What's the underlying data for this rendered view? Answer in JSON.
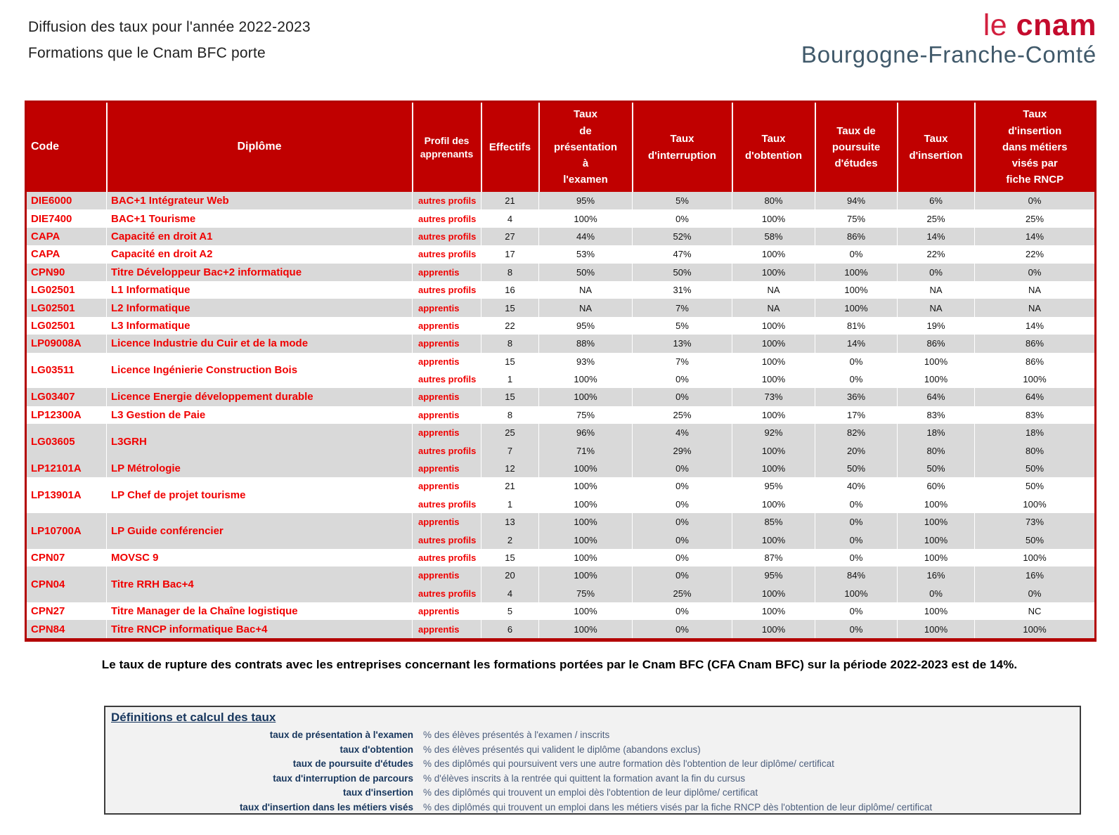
{
  "page": {
    "title_line1": "Diffusion des taux pour l'année 2022-2023",
    "title_line2": "Formations que le Cnam BFC porte"
  },
  "logo": {
    "le": "le ",
    "cnam": "cnam",
    "region": "Bourgogne-Franche-Comté"
  },
  "colors": {
    "header_red": "#c00000",
    "accent_red": "#f00000",
    "outer_border_red": "#b30000",
    "band_gray": "#d9d9d9",
    "navy": "#17365d",
    "logo_red": "#c40b2d",
    "logo_slate": "#40596a"
  },
  "table": {
    "columns": [
      "Code",
      "Diplôme",
      "Profil des\napprenants",
      "Effectifs",
      "Taux\nde\nprésentation\nà\nl'examen",
      "Taux\nd'interruption",
      "Taux\nd'obtention",
      "Taux de\npoursuite\nd'études",
      "Taux\nd'insertion",
      "Taux\nd'insertion\ndans métiers\nvisés par\nfiche RNCP"
    ],
    "groups": [
      {
        "code": "DIE6000",
        "diplome": "BAC+1 Intégrateur Web",
        "shade": "gray",
        "rows": [
          {
            "profil": "autres profils",
            "effectifs": "21",
            "values": [
              "95%",
              "5%",
              "80%",
              "94%",
              "6%",
              "0%"
            ]
          }
        ]
      },
      {
        "code": "DIE7400",
        "diplome": "BAC+1 Tourisme",
        "shade": "white",
        "rows": [
          {
            "profil": "autres profils",
            "effectifs": "4",
            "values": [
              "100%",
              "0%",
              "100%",
              "75%",
              "25%",
              "25%"
            ]
          }
        ]
      },
      {
        "code": "CAPA",
        "diplome": "Capacité en droit A1",
        "shade": "gray",
        "rows": [
          {
            "profil": "autres profils",
            "effectifs": "27",
            "values": [
              "44%",
              "52%",
              "58%",
              "86%",
              "14%",
              "14%"
            ]
          }
        ]
      },
      {
        "code": "CAPA",
        "diplome": "Capacité en droit A2",
        "shade": "white",
        "rows": [
          {
            "profil": "autres profils",
            "effectifs": "17",
            "values": [
              "53%",
              "47%",
              "100%",
              "0%",
              "22%",
              "22%"
            ]
          }
        ]
      },
      {
        "code": "CPN90",
        "diplome": "Titre Développeur Bac+2 informatique",
        "shade": "gray",
        "rows": [
          {
            "profil": "apprentis",
            "effectifs": "8",
            "values": [
              "50%",
              "50%",
              "100%",
              "100%",
              "0%",
              "0%"
            ]
          }
        ]
      },
      {
        "code": "LG02501",
        "diplome": "L1 Informatique",
        "shade": "white",
        "rows": [
          {
            "profil": "autres profils",
            "effectifs": "16",
            "values": [
              "NA",
              "31%",
              "NA",
              "100%",
              "NA",
              "NA"
            ]
          }
        ]
      },
      {
        "code": "LG02501",
        "diplome": "L2 Informatique",
        "shade": "gray",
        "rows": [
          {
            "profil": "apprentis",
            "effectifs": "15",
            "values": [
              "NA",
              "7%",
              "NA",
              "100%",
              "NA",
              "NA"
            ]
          }
        ]
      },
      {
        "code": "LG02501",
        "diplome": "L3 Informatique",
        "shade": "white",
        "rows": [
          {
            "profil": "apprentis",
            "effectifs": "22",
            "values": [
              "95%",
              "5%",
              "100%",
              "81%",
              "19%",
              "14%"
            ]
          }
        ]
      },
      {
        "code": "LP09008A",
        "diplome": "Licence Industrie du Cuir et de la mode",
        "shade": "gray",
        "rows": [
          {
            "profil": "apprentis",
            "effectifs": "8",
            "values": [
              "88%",
              "13%",
              "100%",
              "14%",
              "86%",
              "86%"
            ]
          }
        ]
      },
      {
        "code": "LG03511",
        "diplome": "Licence Ingénierie Construction Bois",
        "shade": "white",
        "rows": [
          {
            "profil": "apprentis",
            "effectifs": "15",
            "values": [
              "93%",
              "7%",
              "100%",
              "0%",
              "100%",
              "86%"
            ]
          },
          {
            "profil": "autres profils",
            "effectifs": "1",
            "values": [
              "100%",
              "0%",
              "100%",
              "0%",
              "100%",
              "100%"
            ]
          }
        ]
      },
      {
        "code": "LG03407",
        "diplome": "Licence Energie développement durable",
        "shade": "gray",
        "rows": [
          {
            "profil": "apprentis",
            "effectifs": "15",
            "values": [
              "100%",
              "0%",
              "73%",
              "36%",
              "64%",
              "64%"
            ]
          }
        ]
      },
      {
        "code": "LP12300A",
        "diplome": "L3 Gestion de Paie",
        "shade": "white",
        "rows": [
          {
            "profil": "apprentis",
            "effectifs": "8",
            "values": [
              "75%",
              "25%",
              "100%",
              "17%",
              "83%",
              "83%"
            ]
          }
        ]
      },
      {
        "code": "LG03605",
        "diplome": "L3GRH",
        "shade": "gray",
        "rows": [
          {
            "profil": "apprentis",
            "effectifs": "25",
            "values": [
              "96%",
              "4%",
              "92%",
              "82%",
              "18%",
              "18%"
            ]
          },
          {
            "profil": "autres profils",
            "effectifs": "7",
            "values": [
              "71%",
              "29%",
              "100%",
              "20%",
              "80%",
              "80%"
            ]
          }
        ]
      },
      {
        "code": "LP12101A",
        "diplome": "LP Métrologie",
        "shade": "gray",
        "rows": [
          {
            "profil": "apprentis",
            "effectifs": "12",
            "values": [
              "100%",
              "0%",
              "100%",
              "50%",
              "50%",
              "50%"
            ]
          }
        ]
      },
      {
        "code": "LP13901A",
        "diplome": "LP Chef de projet tourisme",
        "shade": "white",
        "rows": [
          {
            "profil": "apprentis",
            "effectifs": "21",
            "values": [
              "100%",
              "0%",
              "95%",
              "40%",
              "60%",
              "50%"
            ]
          },
          {
            "profil": "autres profils",
            "effectifs": "1",
            "values": [
              "100%",
              "0%",
              "100%",
              "0%",
              "100%",
              "100%"
            ]
          }
        ]
      },
      {
        "code": "LP10700A",
        "diplome": "LP Guide conférencier",
        "shade": "gray",
        "rows": [
          {
            "profil": "apprentis",
            "effectifs": "13",
            "values": [
              "100%",
              "0%",
              "85%",
              "0%",
              "100%",
              "73%"
            ]
          },
          {
            "profil": "autres profils",
            "effectifs": "2",
            "values": [
              "100%",
              "0%",
              "100%",
              "0%",
              "100%",
              "50%"
            ]
          }
        ]
      },
      {
        "code": "CPN07",
        "diplome": "MOVSC 9",
        "shade": "white",
        "rows": [
          {
            "profil": "autres profils",
            "effectifs": "15",
            "values": [
              "100%",
              "0%",
              "87%",
              "0%",
              "100%",
              "100%"
            ]
          }
        ]
      },
      {
        "code": "CPN04",
        "diplome": "Titre RRH Bac+4",
        "shade": "gray",
        "rows": [
          {
            "profil": "apprentis",
            "effectifs": "20",
            "values": [
              "100%",
              "0%",
              "95%",
              "84%",
              "16%",
              "16%"
            ]
          },
          {
            "profil": "autres profils",
            "effectifs": "4",
            "values": [
              "75%",
              "25%",
              "100%",
              "100%",
              "0%",
              "0%"
            ]
          }
        ]
      },
      {
        "code": "CPN27",
        "diplome": "Titre Manager de la Chaîne logistique",
        "shade": "white",
        "rows": [
          {
            "profil": "apprentis",
            "effectifs": "5",
            "values": [
              "100%",
              "0%",
              "100%",
              "0%",
              "100%",
              "NC"
            ]
          }
        ]
      },
      {
        "code": "CPN84",
        "diplome": "Titre RNCP informatique Bac+4",
        "shade": "gray",
        "rows": [
          {
            "profil": "apprentis",
            "effectifs": "6",
            "values": [
              "100%",
              "0%",
              "100%",
              "0%",
              "100%",
              "100%"
            ]
          }
        ]
      }
    ]
  },
  "note": "Le taux de rupture des contrats avec les entreprises concernant les formations portées par le Cnam BFC (CFA Cnam BFC) sur la période 2022-2023 est de 14%.",
  "definitions": {
    "title": "Définitions et calcul des taux",
    "items": [
      {
        "label": "taux de présentation à l'examen",
        "description": "% des élèves présentés à l'examen / inscrits"
      },
      {
        "label": "taux d'obtention",
        "description": "% des élèves présentés qui valident le diplôme (abandons exclus)"
      },
      {
        "label": "taux de poursuite d'études",
        "description": "% des diplômés qui poursuivent vers une autre formation dès l'obtention de leur diplôme/ certificat"
      },
      {
        "label": "taux d'interruption de parcours",
        "description": "% d'élèves inscrits à la rentrée qui quittent la formation avant la fin du cursus"
      },
      {
        "label": "taux d'insertion",
        "description": "% des diplômés qui trouvent un emploi dès l'obtention de leur diplôme/ certificat"
      },
      {
        "label": "taux d'insertion dans les métiers visés",
        "description": "% des diplômés qui trouvent un emploi dans les métiers visés par la fiche RNCP dès l'obtention de leur diplôme/ certificat"
      }
    ]
  }
}
